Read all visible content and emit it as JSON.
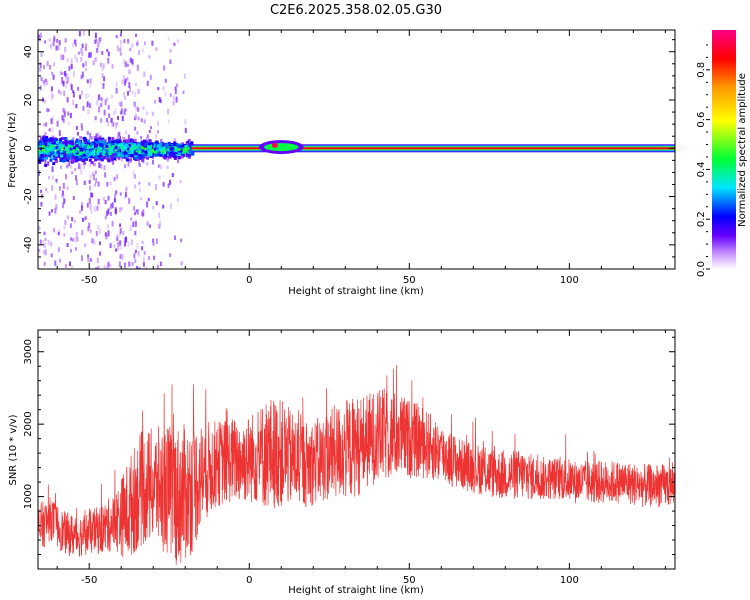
{
  "title": "C2E6.2025.358.02.05.G30",
  "chart_data": [
    {
      "type": "heatmap",
      "title": "C2E6.2025.358.02.05.G30",
      "xlabel": "Height of straight line (km)",
      "ylabel": "Frequency (Hz)",
      "xlim": [
        -66,
        133
      ],
      "ylim": [
        -50,
        49
      ],
      "xticks": [
        -50,
        0,
        50,
        100
      ],
      "yticks": [
        -40,
        -20,
        0,
        20,
        40
      ],
      "colorbar": {
        "label": "Normalized spectral amplitude",
        "range": [
          0.0,
          0.96
        ],
        "ticks": [
          0.0,
          0.2,
          0.4,
          0.6,
          0.8
        ],
        "colormap": [
          "#ffffff",
          "#cc99ff",
          "#6600ff",
          "#0000ff",
          "#00e5ff",
          "#00ff33",
          "#ffff00",
          "#ff9900",
          "#ff0000",
          "#ff0088"
        ]
      },
      "features": [
        {
          "name": "scattered noise",
          "x_range": [
            -66,
            -18
          ],
          "y_range": [
            -50,
            49
          ],
          "amplitude": 0.1
        },
        {
          "name": "broadband band",
          "x_range": [
            -66,
            -18
          ],
          "y_range": [
            -6,
            6
          ],
          "amplitude": 0.4
        },
        {
          "name": "narrow carrier line",
          "x_range": [
            -18,
            133
          ],
          "y_center": 0,
          "amplitude": 0.9
        },
        {
          "name": "bump",
          "x_range": [
            3,
            17
          ],
          "y_range": [
            -2,
            3
          ],
          "amplitude": 0.95
        }
      ]
    },
    {
      "type": "line",
      "title": "",
      "xlabel": "Height of straight line (km)",
      "ylabel": "SNR (10 * v/v)",
      "xlim": [
        -66,
        133
      ],
      "ylim": [
        0,
        3300
      ],
      "xticks": [
        -50,
        0,
        50,
        100
      ],
      "yticks": [
        1000,
        2000,
        3000
      ],
      "color": "#ee3333",
      "series": [
        {
          "name": "SNR",
          "x": [
            -66,
            -62,
            -58,
            -54,
            -50,
            -46,
            -42,
            -38,
            -34,
            -30,
            -26,
            -22,
            -18,
            -14,
            -10,
            -6,
            -2,
            2,
            6,
            10,
            14,
            18,
            22,
            26,
            30,
            34,
            38,
            42,
            46,
            50,
            54,
            58,
            62,
            66,
            70,
            74,
            78,
            82,
            86,
            90,
            94,
            98,
            102,
            106,
            110,
            114,
            118,
            122,
            126,
            130,
            133
          ],
          "center": [
            550,
            700,
            500,
            450,
            500,
            550,
            650,
            800,
            1100,
            1150,
            1100,
            1000,
            1100,
            1350,
            1450,
            1500,
            1500,
            1550,
            1600,
            1600,
            1500,
            1450,
            1500,
            1600,
            1650,
            1700,
            1800,
            1850,
            1850,
            1800,
            1750,
            1650,
            1550,
            1450,
            1400,
            1350,
            1300,
            1300,
            1300,
            1250,
            1250,
            1250,
            1200,
            1200,
            1200,
            1200,
            1200,
            1150,
            1150,
            1150,
            1150
          ],
          "amplitude": [
            350,
            300,
            300,
            300,
            300,
            350,
            400,
            700,
            800,
            800,
            900,
            1000,
            900,
            700,
            600,
            600,
            600,
            650,
            800,
            750,
            650,
            600,
            600,
            650,
            700,
            700,
            650,
            650,
            600,
            550,
            500,
            450,
            400,
            350,
            350,
            350,
            350,
            350,
            350,
            300,
            300,
            300,
            300,
            300,
            300,
            300,
            300,
            300,
            300,
            300,
            300
          ]
        }
      ]
    }
  ]
}
